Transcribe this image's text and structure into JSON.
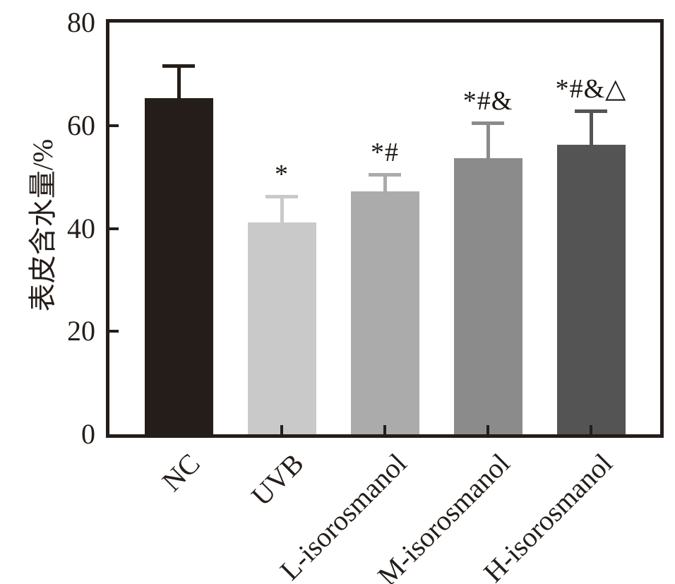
{
  "chart_data": {
    "type": "bar",
    "title": "",
    "xlabel": "",
    "ylabel": "表皮含水量/%",
    "ylim": [
      0,
      80
    ],
    "yticks": [
      0,
      20,
      40,
      60,
      80
    ],
    "grid": false,
    "legend": null,
    "categories": [
      "NC",
      "UVB",
      "L-isorosmanol",
      "M-isorosmanol",
      "H-isorosmanol"
    ],
    "series": [
      {
        "name": "epidermal-water-content",
        "values": [
          65.3,
          41.2,
          47.2,
          53.7,
          56.2
        ],
        "errors_plus": [
          6.6,
          5.4,
          3.6,
          7.2,
          6.8
        ]
      }
    ],
    "annotations": [
      "",
      "*",
      "*#",
      "*#&",
      "*#&△"
    ],
    "bar_colors": [
      "#241d19",
      "#c9c9c9",
      "#ababab",
      "#8b8b8b",
      "#545454"
    ],
    "axis_color": "#241d19",
    "annotation_color": "#1c1713",
    "background_color": "#ffffff"
  }
}
